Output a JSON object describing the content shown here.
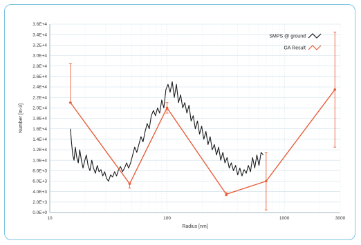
{
  "chart_data": {
    "type": "line",
    "xlabel": "Radius [nm]",
    "ylabel": "Number [m-3]",
    "x_scale": "log",
    "xlim": [
      10,
      3000
    ],
    "ylim": [
      0,
      36000
    ],
    "x_ticks": [
      10,
      100,
      1000,
      3000
    ],
    "x_tick_labels": [
      "10",
      "100",
      "1000",
      "3000"
    ],
    "y_ticks": [
      0,
      2000,
      4000,
      6000,
      8000,
      10000,
      12000,
      14000,
      16000,
      18000,
      20000,
      22000,
      24000,
      26000,
      28000,
      30000,
      32000,
      34000,
      36000
    ],
    "y_tick_labels": [
      "0.0E+0",
      "2.0E+3",
      "4.0E+3",
      "6.0E+3",
      "8.0E+3",
      "1.0E+4",
      "1.2E+4",
      "1.4E+4",
      "1.6E+4",
      "1.8E+4",
      "2.0E+4",
      "2.2E+4",
      "2.4E+4",
      "2.6E+4",
      "2.8E+4",
      "3.0E+4",
      "3.2E+4",
      "3.4E+4",
      "3.6E+4"
    ],
    "grid": true,
    "legend_position": "top-right",
    "series": [
      {
        "name": "SMPS @ ground",
        "color": "#1a1a1a",
        "points": [
          [
            15.0,
            16000
          ],
          [
            15.3,
            13500
          ],
          [
            15.7,
            11000
          ],
          [
            16.1,
            10000
          ],
          [
            16.5,
            12500
          ],
          [
            17.0,
            10500
          ],
          [
            17.5,
            9500
          ],
          [
            18.0,
            12000
          ],
          [
            18.6,
            10000
          ],
          [
            19.2,
            8500
          ],
          [
            19.8,
            9800
          ],
          [
            20.5,
            11000
          ],
          [
            21.2,
            9000
          ],
          [
            22.0,
            8000
          ],
          [
            22.8,
            10000
          ],
          [
            23.6,
            8500
          ],
          [
            24.5,
            7500
          ],
          [
            25.4,
            9000
          ],
          [
            26.3,
            7800
          ],
          [
            27.3,
            8200
          ],
          [
            28.3,
            7000
          ],
          [
            29.4,
            7800
          ],
          [
            30.5,
            6500
          ],
          [
            31.7,
            6000
          ],
          [
            33.0,
            7200
          ],
          [
            34.3,
            6800
          ],
          [
            35.7,
            7800
          ],
          [
            37.1,
            7000
          ],
          [
            38.6,
            8200
          ],
          [
            40.1,
            8800
          ],
          [
            41.7,
            7800
          ],
          [
            43.4,
            8500
          ],
          [
            45.2,
            9500
          ],
          [
            47.0,
            8500
          ],
          [
            48.9,
            9500
          ],
          [
            50.9,
            11000
          ],
          [
            53.0,
            12500
          ],
          [
            55.2,
            11500
          ],
          [
            57.5,
            13000
          ],
          [
            59.9,
            14500
          ],
          [
            62.4,
            13500
          ],
          [
            65.0,
            15500
          ],
          [
            67.7,
            17000
          ],
          [
            70.5,
            16000
          ],
          [
            73.4,
            18500
          ],
          [
            76.5,
            19500
          ],
          [
            79.7,
            18500
          ],
          [
            83.0,
            20000
          ],
          [
            86.5,
            19000
          ],
          [
            90.1,
            21500
          ],
          [
            93.9,
            20000
          ],
          [
            97.8,
            23500
          ],
          [
            101.9,
            24500
          ],
          [
            106.2,
            23000
          ],
          [
            110.7,
            25000
          ],
          [
            115.3,
            22000
          ],
          [
            120.2,
            24500
          ],
          [
            125.2,
            21000
          ],
          [
            130.5,
            22500
          ],
          [
            136.0,
            20000
          ],
          [
            141.7,
            21000
          ],
          [
            147.7,
            19000
          ],
          [
            153.9,
            20500
          ],
          [
            160.4,
            17500
          ],
          [
            167.2,
            18500
          ],
          [
            174.3,
            16000
          ],
          [
            181.7,
            17500
          ],
          [
            189.4,
            15000
          ],
          [
            197.4,
            16500
          ],
          [
            205.8,
            14000
          ],
          [
            214.5,
            15500
          ],
          [
            223.6,
            13000
          ],
          [
            233.1,
            14500
          ],
          [
            243.0,
            12000
          ],
          [
            253.3,
            13000
          ],
          [
            264.1,
            11000
          ],
          [
            275.3,
            12500
          ],
          [
            287.0,
            10000
          ],
          [
            299.2,
            11500
          ],
          [
            311.9,
            9500
          ],
          [
            325.2,
            10500
          ],
          [
            339.0,
            8500
          ],
          [
            353.4,
            9500
          ],
          [
            368.5,
            8000
          ],
          [
            384.2,
            9000
          ],
          [
            400.5,
            7200
          ],
          [
            417.6,
            8500
          ],
          [
            435.4,
            7000
          ],
          [
            454.0,
            8200
          ],
          [
            473.3,
            7500
          ],
          [
            493.5,
            9000
          ],
          [
            514.6,
            7800
          ],
          [
            536.5,
            10500
          ],
          [
            559.4,
            8500
          ],
          [
            583.3,
            11000
          ],
          [
            608.2,
            9000
          ],
          [
            634.2,
            11500
          ],
          [
            661.3,
            11000
          ]
        ]
      },
      {
        "name": "GA Result",
        "color": "#e8603c",
        "points": [
          [
            15.0,
            21000
          ],
          [
            48.0,
            5500
          ],
          [
            100.0,
            20000
          ],
          [
            320.0,
            3500
          ],
          [
            700.0,
            6000
          ],
          [
            2700.0,
            23500
          ]
        ],
        "error_bars": [
          [
            15.0,
            21000,
            28500
          ],
          [
            48.0,
            4700,
            5500
          ],
          [
            100.0,
            19000,
            21000
          ],
          [
            320.0,
            3200,
            3800
          ],
          [
            700.0,
            500,
            11500
          ],
          [
            2700.0,
            12500,
            34500
          ]
        ]
      }
    ]
  }
}
